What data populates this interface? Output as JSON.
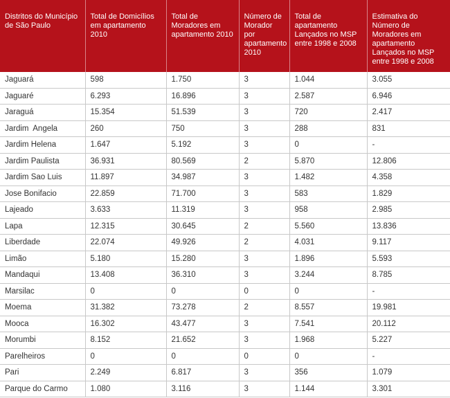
{
  "table": {
    "header": [
      "Distritos do Município de São Paulo",
      "Total de Domicílios em apartamento 2010",
      "Total de Moradores em apartamento 2010",
      "Número de Morador por apartamento 2010",
      "Total de apartamento Lançados no MSP entre 1998 e 2008",
      "Estimativa do Número de Moradores em apartamento Lançados no MSP entre 1998 e 2008"
    ],
    "rows": [
      [
        "Jaguará",
        "598",
        "1.750",
        "3",
        "1.044",
        "3.055"
      ],
      [
        "Jaguaré",
        "6.293",
        "16.896",
        "3",
        "2.587",
        "6.946"
      ],
      [
        "Jaraguá",
        "15.354",
        "51.539",
        "3",
        "720",
        "2.417"
      ],
      [
        "Jardim  Angela",
        "260",
        "750",
        "3",
        "288",
        "831"
      ],
      [
        "Jardim Helena",
        "1.647",
        "5.192",
        "3",
        "0",
        "-"
      ],
      [
        "Jardim Paulista",
        "36.931",
        "80.569",
        "2",
        "5.870",
        "12.806"
      ],
      [
        "Jardim Sao Luis",
        "11.897",
        "34.987",
        "3",
        "1.482",
        "4.358"
      ],
      [
        "Jose Bonifacio",
        "22.859",
        "71.700",
        "3",
        "583",
        "1.829"
      ],
      [
        "Lajeado",
        "3.633",
        "11.319",
        "3",
        "958",
        "2.985"
      ],
      [
        "Lapa",
        "12.315",
        "30.645",
        "2",
        "5.560",
        "13.836"
      ],
      [
        "Liberdade",
        "22.074",
        "49.926",
        "2",
        "4.031",
        "9.117"
      ],
      [
        "Limão",
        "5.180",
        "15.280",
        "3",
        "1.896",
        "5.593"
      ],
      [
        "Mandaqui",
        "13.408",
        "36.310",
        "3",
        "3.244",
        "8.785"
      ],
      [
        "Marsilac",
        "0",
        "0",
        "0",
        "0",
        "-"
      ],
      [
        "Moema",
        "31.382",
        "73.278",
        "2",
        "8.557",
        "19.981"
      ],
      [
        "Mooca",
        "16.302",
        "43.477",
        "3",
        "7.541",
        "20.112"
      ],
      [
        "Morumbi",
        "8.152",
        "21.652",
        "3",
        "1.968",
        "5.227"
      ],
      [
        "Parelheiros",
        "0",
        "0",
        "0",
        "0",
        "-"
      ],
      [
        "Pari",
        "2.249",
        "6.817",
        "3",
        "356",
        "1.079"
      ],
      [
        "Parque do Carmo",
        "1.080",
        "3.116",
        "3",
        "1.144",
        "3.301"
      ]
    ]
  }
}
